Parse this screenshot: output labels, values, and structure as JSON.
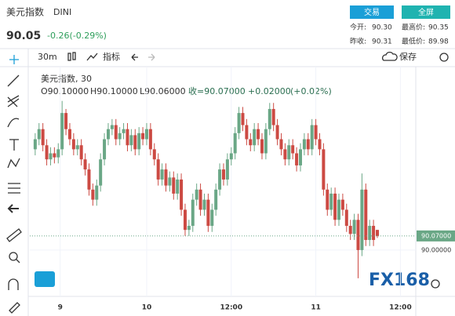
{
  "header": {
    "title": "美元指数",
    "symbol": "DINI",
    "price": "90.05",
    "change": "-0.26(-0.29%)",
    "buttons": [
      "交易",
      "全屏"
    ],
    "stats": [
      {
        "label": "今开:",
        "value": "90.30"
      },
      {
        "label": "最高价:",
        "value": "90.35"
      },
      {
        "label": "昨收:",
        "value": "90.31"
      },
      {
        "label": "最低价:",
        "value": "89.98"
      }
    ]
  },
  "toolbar": {
    "interval": "30m",
    "indicators": "指标",
    "save": "保存"
  },
  "chart_data": {
    "type": "candlestick",
    "legend_title": "美元指数, 30",
    "legend_values": [
      "O90.10000",
      "H90.10000",
      "L90.06000",
      "收=90.07000",
      "+0.02000",
      "(+0.02%)"
    ],
    "watermark": "FX168",
    "up_color": "#6aa786",
    "down_color": "#cc4a43",
    "grid": true,
    "xlim": [
      -1.4,
      99
    ],
    "ylim": [
      89.77,
      90.91
    ],
    "xticks": [
      {
        "value": 6.5,
        "label": "9"
      },
      {
        "value": 29,
        "label": "10"
      },
      {
        "value": 51,
        "label": "12:00"
      },
      {
        "value": 73,
        "label": "11"
      },
      {
        "value": 95,
        "label": "12:00"
      }
    ],
    "yticks": [
      {
        "value": 90,
        "label": "90.00000"
      }
    ],
    "last_price": {
      "value": 90.07,
      "label": "90.07000"
    },
    "x": [
      0,
      1,
      2,
      3,
      4,
      5,
      6,
      7,
      8,
      9,
      10,
      11,
      12,
      13,
      14,
      15,
      16,
      17,
      18,
      19,
      20,
      21,
      22,
      23,
      24,
      25,
      26,
      27,
      28,
      29,
      30,
      31,
      32,
      33,
      34,
      35,
      36,
      37,
      38,
      39,
      40,
      41,
      42,
      43,
      44,
      45,
      46,
      47,
      48,
      49,
      50,
      51,
      52,
      53,
      54,
      55,
      56,
      57,
      58,
      59,
      60,
      61,
      62,
      63,
      64,
      65,
      66,
      67,
      68,
      69,
      70,
      71,
      72,
      73,
      74,
      75,
      76,
      77,
      78,
      79,
      80,
      81,
      82,
      83,
      84,
      85,
      86,
      87,
      88,
      89
    ],
    "series": [
      {
        "open": [
          90.5,
          90.55,
          90.6,
          90.52,
          90.45,
          90.48,
          90.46,
          90.5,
          90.68,
          90.6,
          90.55,
          90.5,
          90.52,
          90.45,
          90.4,
          90.3,
          90.25,
          90.32,
          90.45,
          90.55,
          90.6,
          90.62,
          90.55,
          90.58,
          90.6,
          90.52,
          90.57,
          90.5,
          90.58,
          90.55,
          90.6,
          90.5,
          90.45,
          90.35,
          90.4,
          90.32,
          90.36,
          90.28,
          90.35,
          90.2,
          90.1,
          90.12,
          90.25,
          90.3,
          90.2,
          90.25,
          90.12,
          90.2,
          90.3,
          90.4,
          90.35,
          90.45,
          90.48,
          90.58,
          90.68,
          90.62,
          90.55,
          90.52,
          90.6,
          90.55,
          90.48,
          90.6,
          90.7,
          90.62,
          90.55,
          90.5,
          90.45,
          90.52,
          90.48,
          90.42,
          90.5,
          90.55,
          90.5,
          90.62,
          90.55,
          90.5,
          90.3,
          90.2,
          90.28,
          90.15,
          90.25,
          90.2,
          90.12,
          90.08,
          90.15,
          90.0,
          90.3,
          90.05,
          90.12,
          90.1
        ],
        "high": [
          90.58,
          90.63,
          90.63,
          90.55,
          90.51,
          90.51,
          90.53,
          90.74,
          90.7,
          90.63,
          90.58,
          90.55,
          90.55,
          90.48,
          90.43,
          90.33,
          90.35,
          90.48,
          90.58,
          90.63,
          90.65,
          90.65,
          90.61,
          90.63,
          90.63,
          90.6,
          90.6,
          90.61,
          90.61,
          90.63,
          90.63,
          90.53,
          90.48,
          90.43,
          90.43,
          90.39,
          90.39,
          90.38,
          90.38,
          90.23,
          90.15,
          90.28,
          90.33,
          90.33,
          90.28,
          90.28,
          90.23,
          90.33,
          90.43,
          90.43,
          90.48,
          90.51,
          90.61,
          90.71,
          90.71,
          90.65,
          90.58,
          90.63,
          90.63,
          90.58,
          90.63,
          90.73,
          90.73,
          90.65,
          90.58,
          90.53,
          90.55,
          90.55,
          90.51,
          90.53,
          90.58,
          90.58,
          90.65,
          90.65,
          90.58,
          90.53,
          90.33,
          90.31,
          90.31,
          90.28,
          90.28,
          90.23,
          90.15,
          90.18,
          90.18,
          90.38,
          90.33,
          90.15,
          90.15,
          90.1
        ],
        "low": [
          90.47,
          90.52,
          90.49,
          90.42,
          90.42,
          90.43,
          90.43,
          90.47,
          90.57,
          90.52,
          90.47,
          90.47,
          90.42,
          90.37,
          90.27,
          90.22,
          90.22,
          90.29,
          90.42,
          90.52,
          90.57,
          90.52,
          90.52,
          90.55,
          90.49,
          90.49,
          90.47,
          90.47,
          90.52,
          90.52,
          90.47,
          90.42,
          90.32,
          90.32,
          90.29,
          90.29,
          90.25,
          90.25,
          90.17,
          90.07,
          90.07,
          90.09,
          90.22,
          90.17,
          90.17,
          90.09,
          90.09,
          90.17,
          90.27,
          90.32,
          90.32,
          90.42,
          90.45,
          90.55,
          90.59,
          90.52,
          90.49,
          90.49,
          90.52,
          90.45,
          90.45,
          90.57,
          90.59,
          90.52,
          90.47,
          90.42,
          90.42,
          90.45,
          90.39,
          90.39,
          90.47,
          90.47,
          90.47,
          90.52,
          90.47,
          90.27,
          90.17,
          90.17,
          90.12,
          90.12,
          90.17,
          90.09,
          90.05,
          90.05,
          89.86,
          89.97,
          90.02,
          90.02,
          90.02,
          90.06
        ],
        "close": [
          90.55,
          90.6,
          90.52,
          90.45,
          90.48,
          90.46,
          90.5,
          90.68,
          90.6,
          90.55,
          90.5,
          90.52,
          90.45,
          90.4,
          90.3,
          90.25,
          90.32,
          90.45,
          90.55,
          90.6,
          90.62,
          90.55,
          90.58,
          90.6,
          90.52,
          90.57,
          90.5,
          90.58,
          90.55,
          90.6,
          90.5,
          90.45,
          90.35,
          90.4,
          90.32,
          90.36,
          90.28,
          90.35,
          90.2,
          90.1,
          90.12,
          90.25,
          90.3,
          90.2,
          90.25,
          90.12,
          90.2,
          90.3,
          90.4,
          90.35,
          90.45,
          90.48,
          90.58,
          90.68,
          90.62,
          90.55,
          90.52,
          90.6,
          90.55,
          90.48,
          90.6,
          90.7,
          90.62,
          90.55,
          90.5,
          90.45,
          90.52,
          90.48,
          90.42,
          90.5,
          90.55,
          90.5,
          90.62,
          90.55,
          90.5,
          90.3,
          90.2,
          90.28,
          90.15,
          90.25,
          90.2,
          90.12,
          90.08,
          90.15,
          90.0,
          90.3,
          90.05,
          90.12,
          90.05,
          90.07
        ]
      }
    ]
  }
}
